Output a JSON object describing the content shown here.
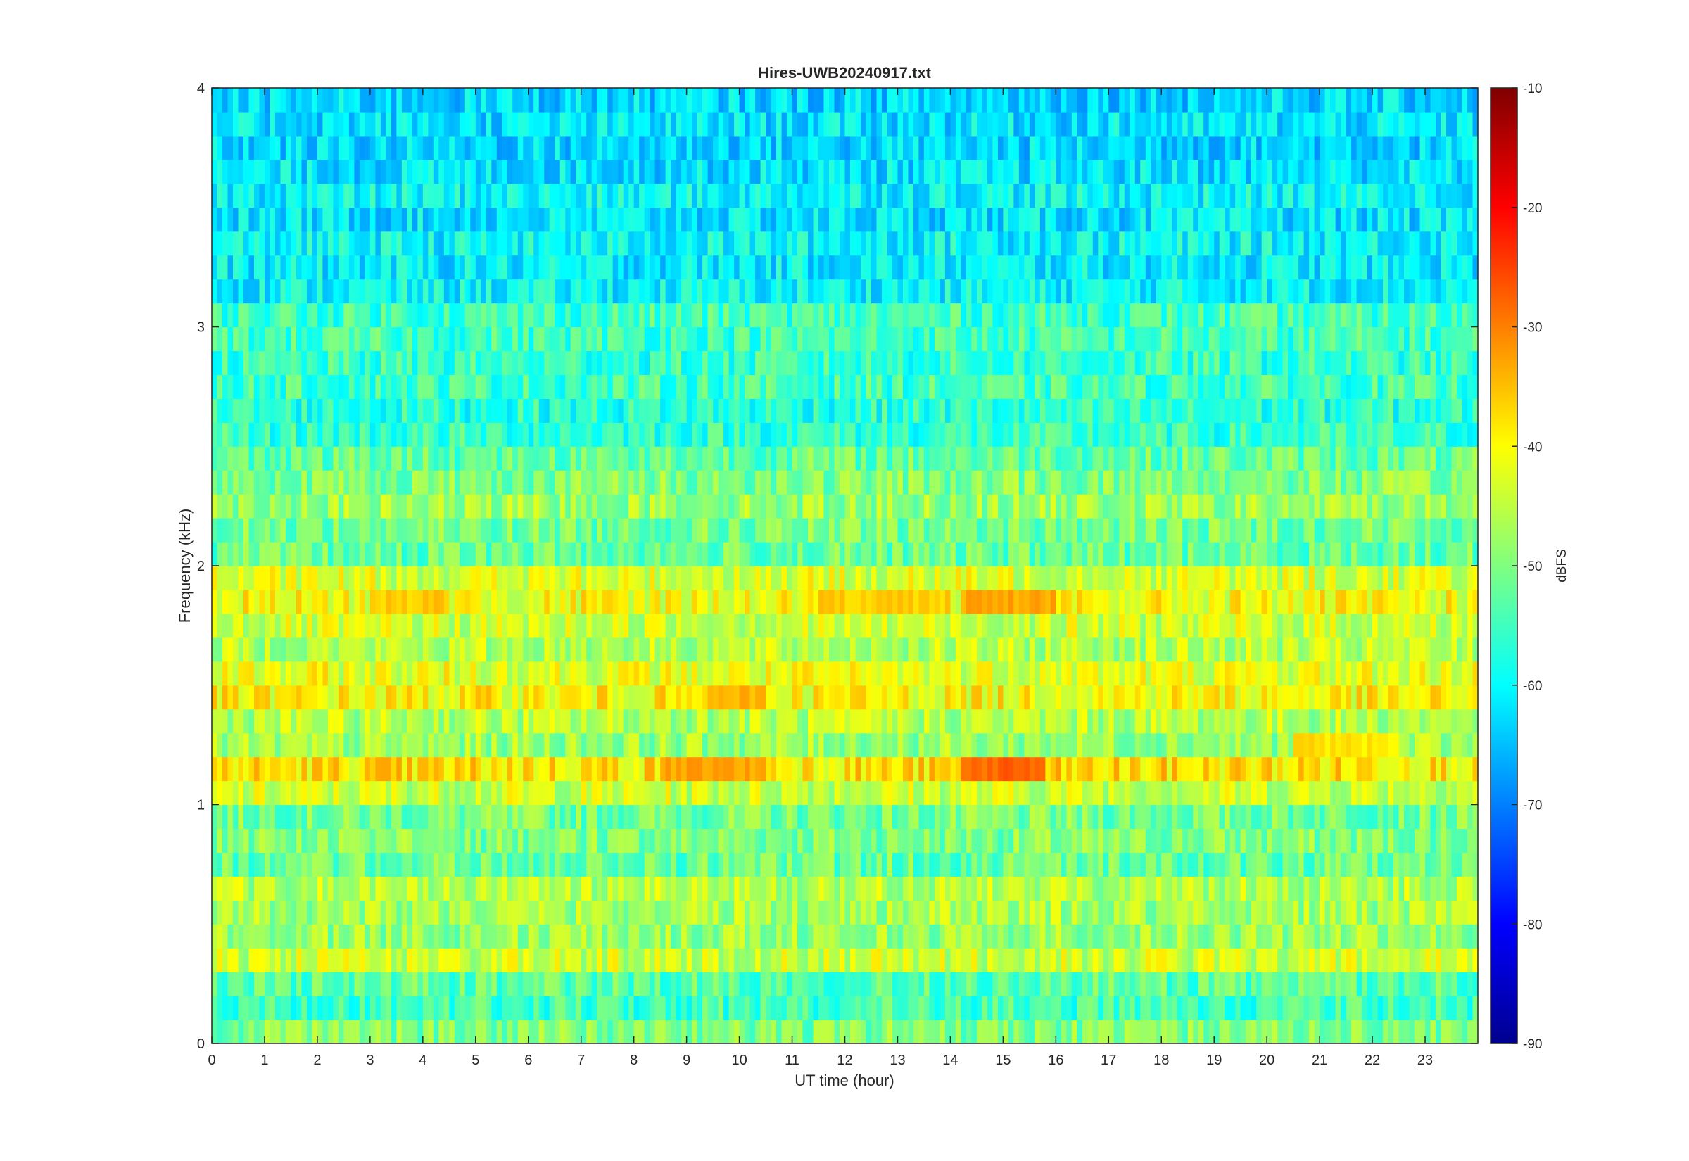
{
  "chart_data": {
    "type": "heatmap",
    "title": "Hires-UWB20240917.txt",
    "xlabel": "UT time (hour)",
    "ylabel": "Frequency (kHz)",
    "xlim": [
      0,
      24
    ],
    "ylim": [
      0,
      4
    ],
    "x_ticks": [
      0,
      1,
      2,
      3,
      4,
      5,
      6,
      7,
      8,
      9,
      10,
      11,
      12,
      13,
      14,
      15,
      16,
      17,
      18,
      19,
      20,
      21,
      22,
      23
    ],
    "y_ticks": [
      0,
      1,
      2,
      3,
      4
    ],
    "colorbar": {
      "label": "dBFS",
      "colormap": "jet",
      "clim": [
        -90,
        -10
      ],
      "ticks": [
        -90,
        -80,
        -70,
        -60,
        -50,
        -40,
        -30,
        -20,
        -10
      ]
    },
    "band_step_khz": 0.1,
    "band_levels_dbfs": [
      {
        "f_khz": 0.05,
        "level": -50
      },
      {
        "f_khz": 0.15,
        "level": -55
      },
      {
        "f_khz": 0.25,
        "level": -53
      },
      {
        "f_khz": 0.35,
        "level": -44
      },
      {
        "f_khz": 0.45,
        "level": -48
      },
      {
        "f_khz": 0.55,
        "level": -47
      },
      {
        "f_khz": 0.65,
        "level": -46
      },
      {
        "f_khz": 0.75,
        "level": -52
      },
      {
        "f_khz": 0.85,
        "level": -50
      },
      {
        "f_khz": 0.95,
        "level": -51
      },
      {
        "f_khz": 1.05,
        "level": -44
      },
      {
        "f_khz": 1.15,
        "level": -38
      },
      {
        "f_khz": 1.25,
        "level": -48
      },
      {
        "f_khz": 1.35,
        "level": -46
      },
      {
        "f_khz": 1.45,
        "level": -40
      },
      {
        "f_khz": 1.55,
        "level": -42
      },
      {
        "f_khz": 1.65,
        "level": -46
      },
      {
        "f_khz": 1.75,
        "level": -44
      },
      {
        "f_khz": 1.85,
        "level": -41
      },
      {
        "f_khz": 1.95,
        "level": -43
      },
      {
        "f_khz": 2.05,
        "level": -52
      },
      {
        "f_khz": 2.15,
        "level": -51
      },
      {
        "f_khz": 2.25,
        "level": -48
      },
      {
        "f_khz": 2.35,
        "level": -50
      },
      {
        "f_khz": 2.45,
        "level": -52
      },
      {
        "f_khz": 2.55,
        "level": -56
      },
      {
        "f_khz": 2.65,
        "level": -57
      },
      {
        "f_khz": 2.75,
        "level": -55
      },
      {
        "f_khz": 2.85,
        "level": -56
      },
      {
        "f_khz": 2.95,
        "level": -55
      },
      {
        "f_khz": 3.05,
        "level": -55
      },
      {
        "f_khz": 3.15,
        "level": -60
      },
      {
        "f_khz": 3.25,
        "level": -61
      },
      {
        "f_khz": 3.35,
        "level": -60
      },
      {
        "f_khz": 3.45,
        "level": -62
      },
      {
        "f_khz": 3.55,
        "level": -60
      },
      {
        "f_khz": 3.65,
        "level": -62
      },
      {
        "f_khz": 3.75,
        "level": -63
      },
      {
        "f_khz": 3.85,
        "level": -62
      },
      {
        "f_khz": 3.95,
        "level": -63
      }
    ],
    "hotspots": [
      {
        "t_start": 14.2,
        "t_end": 15.8,
        "f_khz": 1.15,
        "level": -28
      },
      {
        "t_start": 14.2,
        "t_end": 16.0,
        "f_khz": 1.85,
        "level": -33
      },
      {
        "t_start": 11.5,
        "t_end": 14.0,
        "f_khz": 1.85,
        "level": -36
      },
      {
        "t_start": 8.5,
        "t_end": 10.5,
        "f_khz": 1.15,
        "level": -33
      },
      {
        "t_start": 20.5,
        "t_end": 22.5,
        "f_khz": 1.25,
        "level": -38
      },
      {
        "t_start": 9.5,
        "t_end": 10.5,
        "f_khz": 1.45,
        "level": -34
      },
      {
        "t_start": 3.0,
        "t_end": 4.5,
        "f_khz": 1.85,
        "level": -36
      }
    ]
  }
}
